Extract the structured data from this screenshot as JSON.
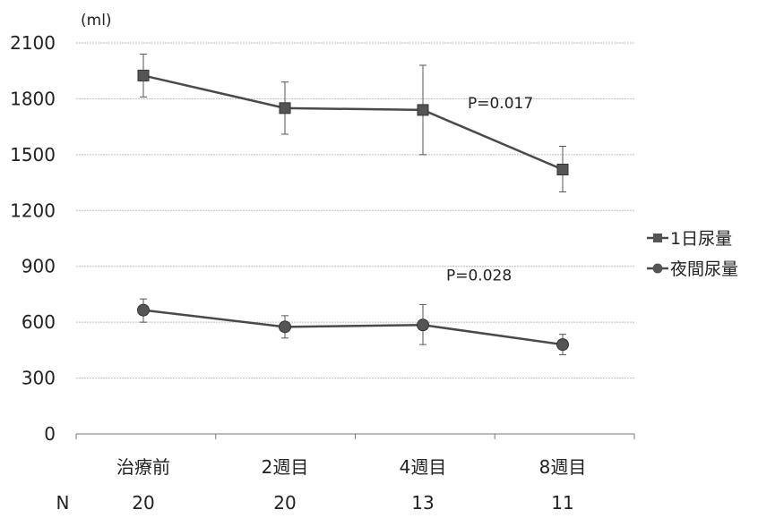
{
  "chart_data": {
    "type": "line",
    "unit_label": "(ml)",
    "categories": [
      "治療前",
      "2週目",
      "4週目",
      "8週目"
    ],
    "ylim": [
      0,
      2100
    ],
    "yticks": [
      0,
      300,
      600,
      900,
      1200,
      1500,
      1800,
      2100
    ],
    "grid": true,
    "legend_position": "right",
    "series": [
      {
        "name": "1日尿量",
        "marker": "square",
        "color": "#4a4a4a",
        "values": [
          1925,
          1750,
          1740,
          1420
        ],
        "err_low": [
          1810,
          1610,
          1500,
          1300
        ],
        "err_high": [
          2040,
          1890,
          1980,
          1545
        ]
      },
      {
        "name": "夜間尿量",
        "marker": "circle",
        "color": "#4a4a4a",
        "values": [
          665,
          575,
          585,
          480
        ],
        "err_low": [
          600,
          515,
          480,
          425
        ],
        "err_high": [
          725,
          635,
          695,
          535
        ]
      }
    ],
    "annotations": [
      {
        "text": "P=0.017",
        "series": 0
      },
      {
        "text": "P=0.028",
        "series": 1
      }
    ],
    "n_label": "N",
    "n_values": [
      "20",
      "20",
      "13",
      "11"
    ]
  }
}
